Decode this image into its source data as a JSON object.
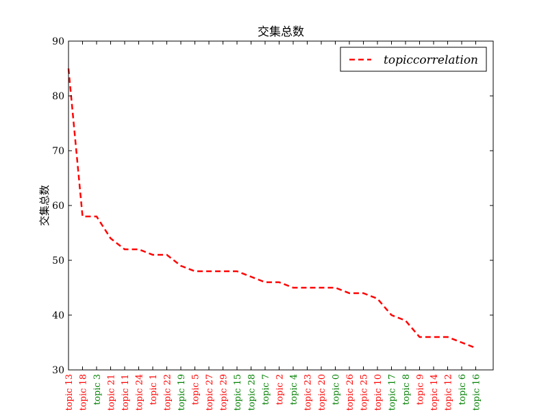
{
  "chart_data": {
    "type": "line",
    "title": "交集总数",
    "xlabel": "",
    "ylabel": "交集总数",
    "ylim": [
      30,
      90
    ],
    "yticks": [
      30,
      40,
      50,
      60,
      70,
      80,
      90
    ],
    "grid": false,
    "legend": {
      "position": "top-right",
      "entries": [
        "topiccorrelation"
      ]
    },
    "categories": [
      "topic 13",
      "topic 18",
      "topic 3",
      "topic 21",
      "topic 11",
      "topic 24",
      "topic 1",
      "topic 22",
      "topic 19",
      "topic 5",
      "topic 27",
      "topic 29",
      "topic 15",
      "topic 28",
      "topic 7",
      "topic 2",
      "topic 4",
      "topic 23",
      "topic 20",
      "topic 0",
      "topic 26",
      "topic 25",
      "topic 10",
      "topic 17",
      "topic 8",
      "topic 9",
      "topic 14",
      "topic 12",
      "topic 6",
      "topic 16"
    ],
    "category_colors": [
      "#ff0000",
      "#ff0000",
      "#008000",
      "#ff0000",
      "#ff0000",
      "#ff0000",
      "#ff0000",
      "#ff0000",
      "#008000",
      "#ff0000",
      "#ff0000",
      "#ff0000",
      "#008000",
      "#008000",
      "#008000",
      "#ff0000",
      "#008000",
      "#ff0000",
      "#ff0000",
      "#008000",
      "#ff0000",
      "#ff0000",
      "#ff0000",
      "#008000",
      "#008000",
      "#ff0000",
      "#ff0000",
      "#ff0000",
      "#008000",
      "#008000"
    ],
    "series": [
      {
        "name": "topiccorrelation",
        "color": "#ff0000",
        "style": "dashed",
        "values": [
          85,
          58,
          58,
          54,
          52,
          52,
          51,
          51,
          49,
          48,
          48,
          48,
          48,
          47,
          46,
          46,
          45,
          45,
          45,
          45,
          44,
          44,
          43,
          40,
          39,
          36,
          36,
          36,
          35,
          34
        ]
      }
    ]
  }
}
